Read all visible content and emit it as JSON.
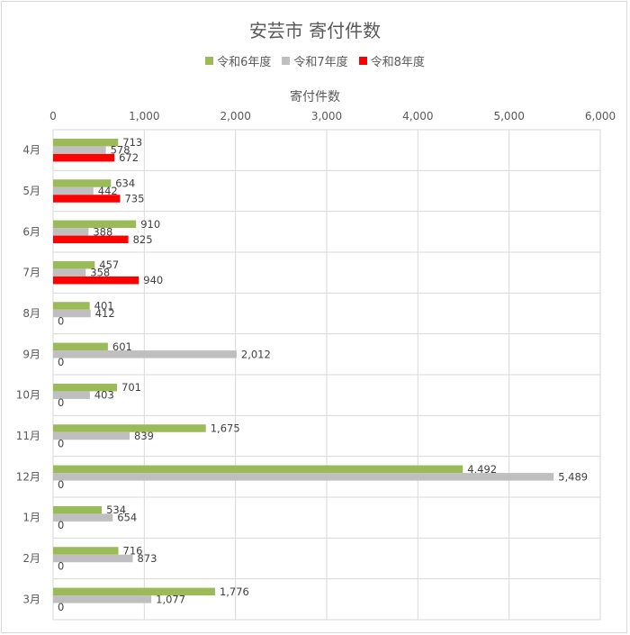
{
  "chart_data": {
    "type": "bar",
    "orientation": "horizontal",
    "title": "安芸市 寄付件数",
    "xlabel": "寄付件数",
    "ylabel": "",
    "xlim": [
      0,
      6000
    ],
    "x_ticks": [
      "0",
      "1,000",
      "2,000",
      "3,000",
      "4,000",
      "5,000",
      "6,000"
    ],
    "x_tick_values": [
      0,
      1000,
      2000,
      3000,
      4000,
      5000,
      6000
    ],
    "x_axis_position": "top",
    "legend_position": "top",
    "grid": true,
    "categories": [
      "4月",
      "5月",
      "6月",
      "7月",
      "8月",
      "9月",
      "10月",
      "11月",
      "12月",
      "1月",
      "2月",
      "3月"
    ],
    "series": [
      {
        "name": "令和6年度",
        "color": "#9bbb59",
        "values": [
          713,
          634,
          910,
          457,
          401,
          601,
          701,
          1675,
          4492,
          534,
          716,
          1776
        ],
        "labels": [
          "713",
          "634",
          "910",
          "457",
          "401",
          "601",
          "701",
          "1,675",
          "4,492",
          "534",
          "716",
          "1,776"
        ]
      },
      {
        "name": "令和7年度",
        "color": "#bfbfbf",
        "values": [
          578,
          442,
          388,
          358,
          412,
          2012,
          403,
          839,
          5489,
          654,
          873,
          1077
        ],
        "labels": [
          "578",
          "442",
          "388",
          "358",
          "412",
          "2,012",
          "403",
          "839",
          "5,489",
          "654",
          "873",
          "1,077"
        ]
      },
      {
        "name": "令和8年度",
        "color": "#ff0000",
        "values": [
          672,
          735,
          825,
          940,
          0,
          0,
          0,
          0,
          0,
          0,
          0,
          0
        ],
        "labels": [
          "672",
          "735",
          "825",
          "940",
          "0",
          "0",
          "0",
          "0",
          "0",
          "0",
          "0",
          "0"
        ]
      }
    ]
  }
}
